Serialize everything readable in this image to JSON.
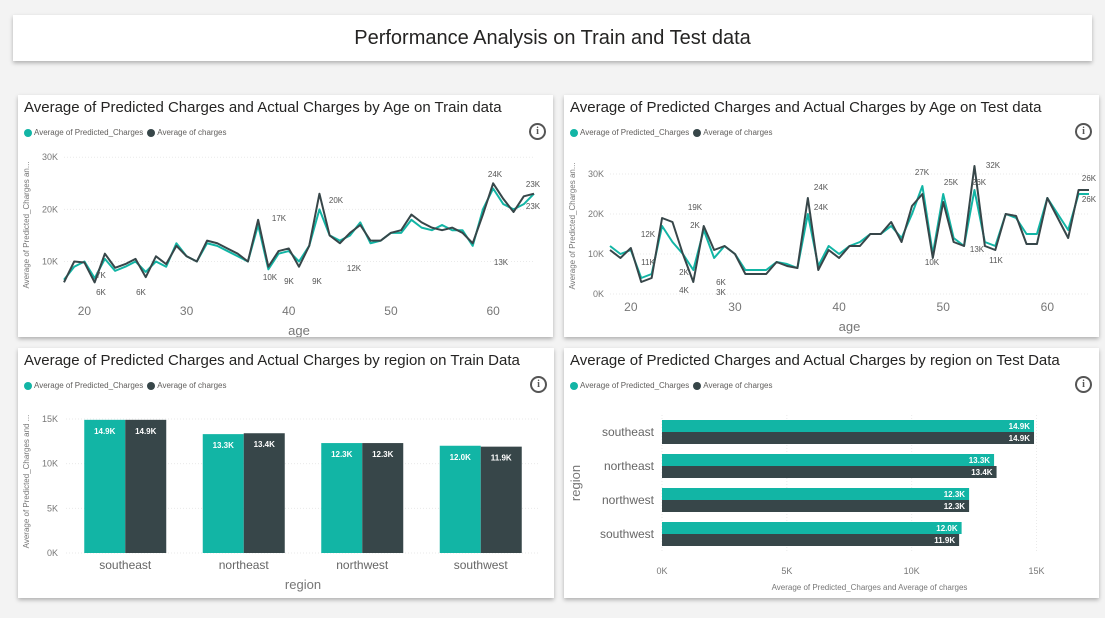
{
  "page_title": "Performance Analysis on Train and Test data",
  "colors": {
    "predicted": "#12b5a5",
    "actual": "#374649"
  },
  "legend": {
    "predicted": "Average of Predicted_Charges",
    "actual": "Average of charges"
  },
  "chart_data": [
    {
      "type": "line",
      "title": "Average of Predicted Charges and Actual Charges by Age on Train data",
      "xlabel": "age",
      "ylabel": "Average of Predicted_Charges an...",
      "xlim": [
        18,
        64
      ],
      "ylim": [
        3000,
        31000
      ],
      "xticks": [
        20,
        30,
        40,
        50,
        60
      ],
      "yticks": [
        10000,
        20000,
        30000
      ],
      "ytick_labels": [
        "10K",
        "20K",
        "30K"
      ],
      "x": [
        18,
        19,
        20,
        21,
        22,
        23,
        24,
        25,
        26,
        27,
        28,
        29,
        30,
        31,
        32,
        33,
        34,
        35,
        36,
        37,
        38,
        39,
        40,
        41,
        42,
        43,
        44,
        45,
        46,
        47,
        48,
        49,
        50,
        51,
        52,
        53,
        54,
        55,
        56,
        57,
        58,
        59,
        60,
        61,
        62,
        63,
        64
      ],
      "series": [
        {
          "name": "Average of Predicted_Charges",
          "values": [
            6500,
            9000,
            10000,
            6800,
            10500,
            8200,
            9000,
            10000,
            8000,
            10000,
            9000,
            13500,
            11000,
            10000,
            13500,
            13000,
            12000,
            11000,
            10000,
            17000,
            8500,
            11500,
            12000,
            10000,
            13000,
            20000,
            15000,
            14000,
            15000,
            17500,
            13500,
            14000,
            15500,
            15500,
            18000,
            16500,
            16000,
            17000,
            16000,
            16000,
            13000,
            20000,
            24000,
            21000,
            20000,
            21000,
            23000
          ]
        },
        {
          "name": "Average of charges",
          "values": [
            6000,
            10000,
            9800,
            6000,
            11500,
            8800,
            9500,
            10500,
            7000,
            11000,
            9500,
            13000,
            11000,
            10000,
            14000,
            13500,
            12500,
            11500,
            10000,
            18000,
            9000,
            12000,
            12500,
            9000,
            13000,
            23000,
            15000,
            13500,
            15500,
            17000,
            14000,
            14000,
            15500,
            16000,
            19000,
            17500,
            16500,
            16000,
            16500,
            15500,
            13500,
            19000,
            25000,
            22000,
            19500,
            22500,
            23000
          ]
        }
      ],
      "annotations": [
        "7K",
        "6K",
        "6K",
        "10K",
        "17K",
        "9K",
        "9K",
        "20K",
        "12K",
        "24K",
        "13K",
        "23K",
        "23K"
      ]
    },
    {
      "type": "line",
      "title": "Average of Predicted Charges and Actual Charges by Age on Test data",
      "xlabel": "age",
      "ylabel": "Average of Predicted_Charges an...",
      "xlim": [
        18,
        64
      ],
      "ylim": [
        0,
        34000
      ],
      "xticks": [
        20,
        30,
        40,
        50,
        60
      ],
      "yticks": [
        0,
        10000,
        20000,
        30000
      ],
      "ytick_labels": [
        "0K",
        "10K",
        "20K",
        "30K"
      ],
      "x": [
        18,
        19,
        20,
        21,
        22,
        23,
        24,
        25,
        26,
        27,
        28,
        29,
        30,
        31,
        32,
        33,
        34,
        35,
        36,
        37,
        38,
        39,
        40,
        41,
        42,
        43,
        44,
        45,
        46,
        47,
        48,
        49,
        50,
        51,
        52,
        53,
        54,
        55,
        56,
        57,
        58,
        59,
        60,
        61,
        62,
        63,
        64
      ],
      "series": [
        {
          "name": "Average of Predicted_Charges",
          "values": [
            12000,
            10000,
            11000,
            4000,
            5000,
            17000,
            13000,
            10000,
            6000,
            16000,
            9000,
            12000,
            10000,
            6000,
            6000,
            6000,
            8000,
            7500,
            6500,
            20000,
            7000,
            12000,
            10000,
            12000,
            13000,
            15000,
            15000,
            17000,
            14000,
            20000,
            27000,
            10000,
            25000,
            14000,
            12000,
            26000,
            13000,
            12000,
            20000,
            19000,
            15000,
            15000,
            24000,
            20000,
            16000,
            25000,
            25000
          ]
        },
        {
          "name": "Average of charges",
          "values": [
            11000,
            9000,
            11500,
            3000,
            4000,
            19000,
            18000,
            10000,
            3000,
            17000,
            11000,
            12000,
            10000,
            5000,
            5000,
            5000,
            8000,
            7000,
            6500,
            24000,
            6000,
            11000,
            9000,
            12000,
            12000,
            15000,
            15000,
            18000,
            13000,
            22000,
            25000,
            9000,
            23000,
            13000,
            12000,
            32000,
            12000,
            11000,
            20000,
            19500,
            12500,
            12500,
            24000,
            19000,
            14000,
            26000,
            26000
          ]
        }
      ],
      "annotations": [
        "12K",
        "11K",
        "4K",
        "2K",
        "19K",
        "2K",
        "6K",
        "3K",
        "24K",
        "24K",
        "27K",
        "10K",
        "25K",
        "26K",
        "13K",
        "32K",
        "11K",
        "26K",
        "26K"
      ]
    },
    {
      "type": "bar",
      "title": "Average of Predicted Charges and Actual Charges by region on Train Data",
      "xlabel": "region",
      "ylabel": "Average of Predicted_Charges and ...",
      "ylim": [
        0,
        16000
      ],
      "yticks": [
        0,
        5000,
        10000,
        15000
      ],
      "ytick_labels": [
        "0K",
        "5K",
        "10K",
        "15K"
      ],
      "categories": [
        "southeast",
        "northeast",
        "northwest",
        "southwest"
      ],
      "series": [
        {
          "name": "Average of Predicted_Charges",
          "values": [
            14900,
            13300,
            12300,
            12000
          ],
          "labels": [
            "14.9K",
            "13.3K",
            "12.3K",
            "12.0K"
          ]
        },
        {
          "name": "Average of charges",
          "values": [
            14900,
            13400,
            12300,
            11900
          ],
          "labels": [
            "14.9K",
            "13.4K",
            "12.3K",
            "11.9K"
          ]
        }
      ]
    },
    {
      "type": "bar",
      "orientation": "horizontal",
      "title": "Average of Predicted Charges and Actual Charges by region on Test Data",
      "xlabel": "Average of Predicted_Charges and Average of charges",
      "ylabel": "region",
      "xlim": [
        0,
        15500
      ],
      "xticks": [
        0,
        5000,
        10000,
        15000
      ],
      "xtick_labels": [
        "0K",
        "5K",
        "10K",
        "15K"
      ],
      "categories": [
        "southeast",
        "northeast",
        "northwest",
        "southwest"
      ],
      "series": [
        {
          "name": "Average of Predicted_Charges",
          "values": [
            14900,
            13300,
            12300,
            12000
          ],
          "labels": [
            "14.9K",
            "13.3K",
            "12.3K",
            "12.0K"
          ]
        },
        {
          "name": "Average of charges",
          "values": [
            14900,
            13400,
            12300,
            11900
          ],
          "labels": [
            "14.9K",
            "13.4K",
            "12.3K",
            "11.9K"
          ]
        }
      ]
    }
  ]
}
